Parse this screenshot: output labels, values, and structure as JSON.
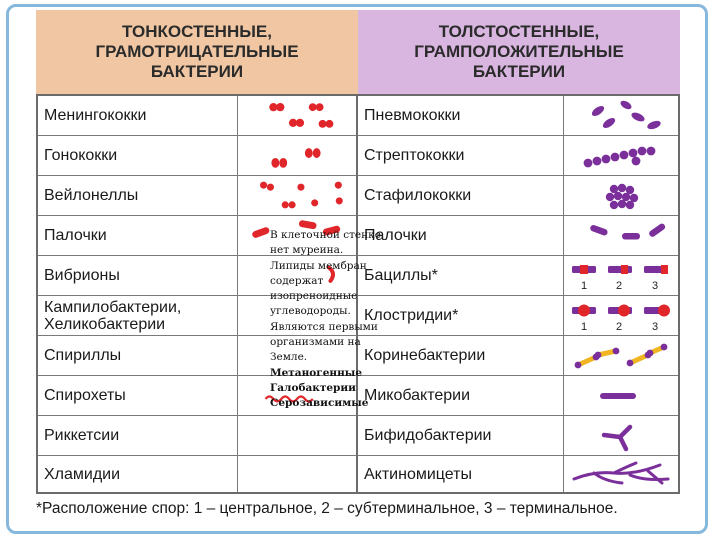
{
  "header": {
    "left": "ТОНКОСТЕННЫЕ,\nГРАМОТРИЦАТЕЛЬНЫЕ\nБАКТЕРИИ",
    "right": "ТОЛСТОСТЕННЫЕ,\nГРАМПОЛОЖИТЕЛЬНЫЕ\nБАКТЕРИИ"
  },
  "left_rows": [
    {
      "name": "Менингококки",
      "icon": "diplococci-icon"
    },
    {
      "name": "Гонококки",
      "icon": "bean-diplococci-icon"
    },
    {
      "name": "Вейлонеллы",
      "icon": "scattered-cocci-icon"
    },
    {
      "name": "Палочки",
      "icon": "rods-icon"
    },
    {
      "name": "Вибрионы",
      "icon": "vibrio-icon"
    },
    {
      "name": "Кампилобактерии,\nХеликобактерии",
      "icon": "campylobacter-icon"
    },
    {
      "name": "Спириллы",
      "icon": "spirilla-icon"
    },
    {
      "name": "Спирохеты",
      "icon": "spirochete-icon"
    },
    {
      "name": "Риккетсии",
      "icon": "rickettsia-icon"
    },
    {
      "name": "Хламидии",
      "icon": "chlamydia-icon"
    }
  ],
  "right_rows": [
    {
      "name": "Пневмококки",
      "icon": "lanceolate-diplococci-icon"
    },
    {
      "name": "Стрептококки",
      "icon": "streptococci-chain-icon"
    },
    {
      "name": "Стафилококки",
      "icon": "staphylococci-cluster-icon"
    },
    {
      "name": "Палочки",
      "icon": "rods-icon"
    },
    {
      "name": "Бациллы*",
      "icon": "bacilli-spores-icon"
    },
    {
      "name": "Клостридии*",
      "icon": "clostridia-spores-icon"
    },
    {
      "name": "Коринебактерии",
      "icon": "corynebacteria-icon"
    },
    {
      "name": "Микобактерии",
      "icon": "mycobacteria-icon"
    },
    {
      "name": "Бифидобактерии",
      "icon": "bifidobacteria-icon"
    },
    {
      "name": "Актиномицеты",
      "icon": "actinomycetes-icon"
    }
  ],
  "spore_labels": [
    "1",
    "2",
    "3"
  ],
  "note": {
    "text": "В клеточной стенке нет муреина. Липиды мембран содержат изопреноидные углеводороды. Являются первыми организмами на Земле.",
    "bold": [
      "Метаногенные",
      "Галобактерии",
      "Серозависимые"
    ]
  },
  "footnote": "*Расположение спор: 1 – центральное, 2 – субтерминальное, 3 – терминальное.",
  "colors": {
    "gram_negative": "#e0262a",
    "gram_positive": "#7b2f9a",
    "header_left_bg": "#f1c7a3",
    "header_right_bg": "#d9b6e0",
    "spore_accent": "#f0b521"
  }
}
